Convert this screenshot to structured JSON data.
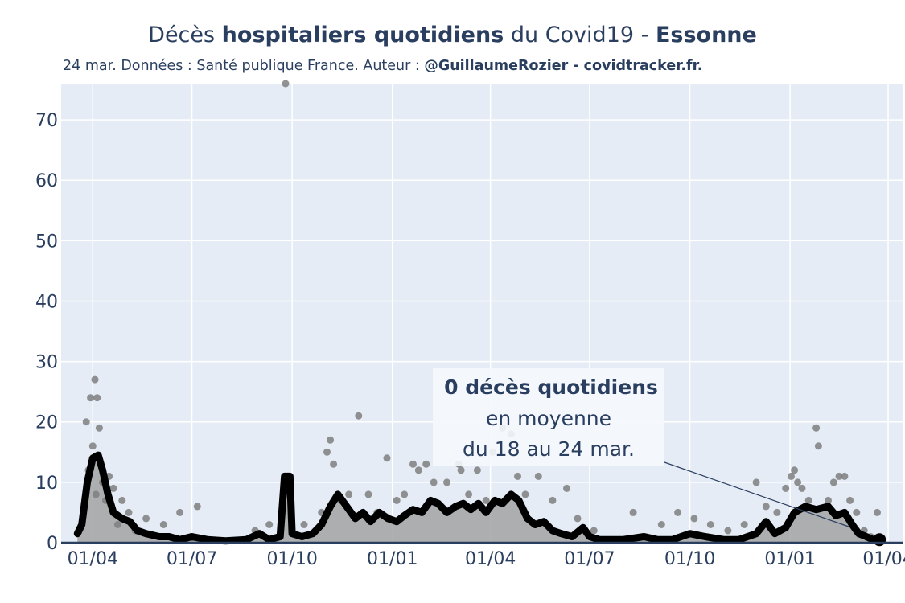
{
  "title": {
    "part1": "Décès ",
    "part2_bold": "hospitaliers quotidiens",
    "part3": " du Covid19 - ",
    "part4_bold": "Essonne"
  },
  "subtitle": {
    "text": "24 mar. Données : Santé publique France. Auteur : ",
    "bold": "@GuillaumeRozier - covidtracker.fr."
  },
  "annotation": {
    "line1_bold": "0 décès quotidiens",
    "line2": "en moyenne",
    "line3": "du 18 au 24 mar."
  },
  "colors": {
    "plot_bg": "#e5ecf6",
    "grid": "#ffffff",
    "line": "#000000",
    "area": "#a3a3a3",
    "points": "#7f7f7f",
    "axis_text": "#2a3f5f"
  },
  "chart_data": {
    "type": "line",
    "title": "Décès hospitaliers quotidiens du Covid19 - Essonne",
    "xlabel": "",
    "ylabel": "",
    "x_ticks": [
      "01/04",
      "01/07",
      "01/10",
      "01/01",
      "01/04",
      "01/07",
      "01/10",
      "01/01",
      "01/04"
    ],
    "x_tick_dates": [
      "2020-04-01",
      "2020-07-01",
      "2020-10-01",
      "2021-01-01",
      "2021-04-01",
      "2021-07-01",
      "2021-10-01",
      "2022-01-01",
      "2022-04-01"
    ],
    "y_ticks": [
      0,
      10,
      20,
      30,
      40,
      50,
      60,
      70
    ],
    "xlim": [
      "2020-03-03",
      "2022-04-15"
    ],
    "ylim": [
      0,
      76
    ],
    "grid": true,
    "series": [
      {
        "type": "moyenne-7j",
        "points": [
          [
            "2020-03-18",
            1.5
          ],
          [
            "2020-03-22",
            3
          ],
          [
            "2020-03-27",
            10
          ],
          [
            "2020-04-01",
            14
          ],
          [
            "2020-04-06",
            14.5
          ],
          [
            "2020-04-10",
            12
          ],
          [
            "2020-04-15",
            8
          ],
          [
            "2020-04-20",
            5
          ],
          [
            "2020-04-28",
            4
          ],
          [
            "2020-05-05",
            3.5
          ],
          [
            "2020-05-12",
            2
          ],
          [
            "2020-05-20",
            1.5
          ],
          [
            "2020-06-01",
            1
          ],
          [
            "2020-06-10",
            1
          ],
          [
            "2020-06-20",
            0.5
          ],
          [
            "2020-07-01",
            1
          ],
          [
            "2020-07-15",
            0.5
          ],
          [
            "2020-08-01",
            0.3
          ],
          [
            "2020-08-20",
            0.5
          ],
          [
            "2020-09-01",
            1.5
          ],
          [
            "2020-09-10",
            0.5
          ],
          [
            "2020-09-20",
            1
          ],
          [
            "2020-09-24",
            11
          ],
          [
            "2020-09-29",
            11
          ],
          [
            "2020-10-01",
            1.5
          ],
          [
            "2020-10-10",
            1
          ],
          [
            "2020-10-20",
            1.5
          ],
          [
            "2020-10-28",
            3
          ],
          [
            "2020-11-05",
            6
          ],
          [
            "2020-11-12",
            8
          ],
          [
            "2020-11-20",
            6
          ],
          [
            "2020-11-28",
            4
          ],
          [
            "2020-12-05",
            5
          ],
          [
            "2020-12-12",
            3.5
          ],
          [
            "2020-12-20",
            5
          ],
          [
            "2020-12-28",
            4
          ],
          [
            "2021-01-05",
            3.5
          ],
          [
            "2021-01-12",
            4.5
          ],
          [
            "2021-01-20",
            5.5
          ],
          [
            "2021-01-28",
            5
          ],
          [
            "2021-02-05",
            7
          ],
          [
            "2021-02-12",
            6.5
          ],
          [
            "2021-02-20",
            5
          ],
          [
            "2021-02-28",
            6
          ],
          [
            "2021-03-07",
            6.5
          ],
          [
            "2021-03-14",
            5.5
          ],
          [
            "2021-03-21",
            6.5
          ],
          [
            "2021-03-28",
            5
          ],
          [
            "2021-04-05",
            7
          ],
          [
            "2021-04-12",
            6.5
          ],
          [
            "2021-04-20",
            8
          ],
          [
            "2021-04-27",
            7
          ],
          [
            "2021-05-05",
            4
          ],
          [
            "2021-05-12",
            3
          ],
          [
            "2021-05-20",
            3.5
          ],
          [
            "2021-05-28",
            2
          ],
          [
            "2021-06-05",
            1.5
          ],
          [
            "2021-06-15",
            1
          ],
          [
            "2021-06-25",
            2.5
          ],
          [
            "2021-07-01",
            1
          ],
          [
            "2021-07-10",
            0.5
          ],
          [
            "2021-08-01",
            0.5
          ],
          [
            "2021-08-20",
            1
          ],
          [
            "2021-09-01",
            0.5
          ],
          [
            "2021-09-15",
            0.5
          ],
          [
            "2021-10-01",
            1.5
          ],
          [
            "2021-10-15",
            1
          ],
          [
            "2021-11-01",
            0.5
          ],
          [
            "2021-11-15",
            0.5
          ],
          [
            "2021-12-01",
            1.5
          ],
          [
            "2021-12-10",
            3.5
          ],
          [
            "2021-12-18",
            1.5
          ],
          [
            "2021-12-28",
            2.5
          ],
          [
            "2022-01-05",
            5
          ],
          [
            "2022-01-15",
            6
          ],
          [
            "2022-01-25",
            5.5
          ],
          [
            "2022-02-05",
            6
          ],
          [
            "2022-02-12",
            4.5
          ],
          [
            "2022-02-20",
            5
          ],
          [
            "2022-02-27",
            3
          ],
          [
            "2022-03-05",
            1.5
          ],
          [
            "2022-03-12",
            1
          ],
          [
            "2022-03-18",
            0.5
          ],
          [
            "2022-03-24",
            0.5
          ]
        ]
      },
      {
        "type": "valeurs-quotidiennes",
        "points": [
          [
            "2020-03-26",
            20
          ],
          [
            "2020-03-28",
            12
          ],
          [
            "2020-03-30",
            24
          ],
          [
            "2020-04-01",
            16
          ],
          [
            "2020-04-03",
            27
          ],
          [
            "2020-04-05",
            24
          ],
          [
            "2020-04-07",
            19
          ],
          [
            "2020-04-04",
            8
          ],
          [
            "2020-04-10",
            10
          ],
          [
            "2020-04-13",
            7
          ],
          [
            "2020-04-16",
            11
          ],
          [
            "2020-04-20",
            9
          ],
          [
            "2020-04-24",
            3
          ],
          [
            "2020-04-28",
            7
          ],
          [
            "2020-05-04",
            5
          ],
          [
            "2020-05-10",
            2
          ],
          [
            "2020-05-20",
            4
          ],
          [
            "2020-06-05",
            3
          ],
          [
            "2020-06-20",
            5
          ],
          [
            "2020-07-06",
            6
          ],
          [
            "2020-08-28",
            2
          ],
          [
            "2020-09-10",
            3
          ],
          [
            "2020-09-25",
            76
          ],
          [
            "2020-10-12",
            3
          ],
          [
            "2020-10-28",
            5
          ],
          [
            "2020-11-02",
            15
          ],
          [
            "2020-11-05",
            17
          ],
          [
            "2020-11-08",
            13
          ],
          [
            "2020-11-15",
            7
          ],
          [
            "2020-11-22",
            8
          ],
          [
            "2020-12-01",
            21
          ],
          [
            "2020-12-10",
            8
          ],
          [
            "2020-12-18",
            5
          ],
          [
            "2020-12-27",
            14
          ],
          [
            "2021-01-05",
            7
          ],
          [
            "2021-01-12",
            8
          ],
          [
            "2021-01-20",
            13
          ],
          [
            "2021-01-25",
            12
          ],
          [
            "2021-02-01",
            13
          ],
          [
            "2021-02-08",
            10
          ],
          [
            "2021-02-20",
            10
          ],
          [
            "2021-03-03",
            13
          ],
          [
            "2021-03-05",
            12
          ],
          [
            "2021-03-12",
            8
          ],
          [
            "2021-03-20",
            12
          ],
          [
            "2021-03-28",
            7
          ],
          [
            "2021-04-03",
            15
          ],
          [
            "2021-04-12",
            19
          ],
          [
            "2021-04-20",
            18
          ],
          [
            "2021-04-26",
            11
          ],
          [
            "2021-05-03",
            8
          ],
          [
            "2021-05-15",
            11
          ],
          [
            "2021-05-28",
            7
          ],
          [
            "2021-06-10",
            9
          ],
          [
            "2021-06-20",
            4
          ],
          [
            "2021-07-05",
            2
          ],
          [
            "2021-08-10",
            5
          ],
          [
            "2021-09-05",
            3
          ],
          [
            "2021-09-20",
            5
          ],
          [
            "2021-10-05",
            4
          ],
          [
            "2021-10-20",
            3
          ],
          [
            "2021-11-05",
            2
          ],
          [
            "2021-11-20",
            3
          ],
          [
            "2021-12-01",
            10
          ],
          [
            "2021-12-10",
            6
          ],
          [
            "2021-12-20",
            5
          ],
          [
            "2021-12-28",
            9
          ],
          [
            "2022-01-02",
            11
          ],
          [
            "2022-01-05",
            12
          ],
          [
            "2022-01-08",
            10
          ],
          [
            "2022-01-12",
            9
          ],
          [
            "2022-01-18",
            7
          ],
          [
            "2022-01-25",
            19
          ],
          [
            "2022-01-27",
            16
          ],
          [
            "2022-02-05",
            7
          ],
          [
            "2022-02-10",
            10
          ],
          [
            "2022-02-15",
            11
          ],
          [
            "2022-02-20",
            11
          ],
          [
            "2022-02-25",
            7
          ],
          [
            "2022-03-03",
            5
          ],
          [
            "2022-03-10",
            2
          ],
          [
            "2022-03-16",
            1
          ],
          [
            "2022-03-22",
            5
          ]
        ]
      }
    ]
  }
}
